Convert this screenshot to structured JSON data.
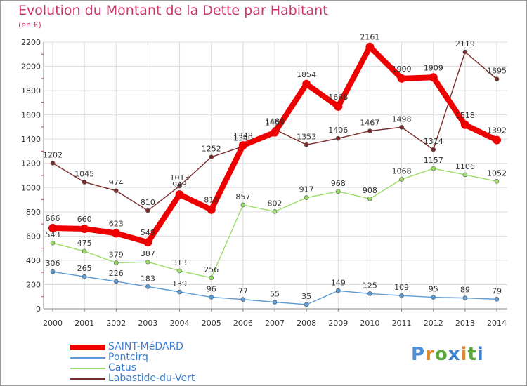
{
  "title": "Evolution du Montant de la Dette par Habitant",
  "subtitle": "(en €)",
  "logo": {
    "text": "Proxiti",
    "letter_colors": [
      "#4a8fd8",
      "#e0872a",
      "#5aa83a",
      "#3d7fd0",
      "#e0872a",
      "#5aa83a",
      "#3d7fd0"
    ]
  },
  "chart_data": {
    "type": "line",
    "title": "Evolution du Montant de la Dette par Habitant",
    "ylabel": "(en €)",
    "xlabel": "",
    "ylim": [
      0,
      2200
    ],
    "yticks": [
      0,
      200,
      400,
      600,
      800,
      1000,
      1200,
      1400,
      1600,
      1800,
      2000,
      2200
    ],
    "grid": true,
    "legend": "bottom-left",
    "x": [
      "2000",
      "2001",
      "2002",
      "2003",
      "2004",
      "2005",
      "2006",
      "2007",
      "2008",
      "2009",
      "2010",
      "2011",
      "2012",
      "2013",
      "2014"
    ],
    "series": [
      {
        "name": "Pontcirq",
        "color": "#5b9bd5",
        "values": [
          306,
          265,
          226,
          183,
          139,
          96,
          77,
          55,
          35,
          149,
          125,
          109,
          95,
          89,
          79
        ]
      },
      {
        "name": "Catus",
        "color": "#99dd66",
        "values": [
          543,
          475,
          379,
          387,
          313,
          256,
          857,
          802,
          917,
          968,
          908,
          1068,
          1157,
          1106,
          1052
        ]
      },
      {
        "name": "Labastide-du-Vert",
        "color": "#7a2a2a",
        "values": [
          1202,
          1045,
          974,
          810,
          1013,
          1252,
          1340,
          1480,
          1353,
          1406,
          1467,
          1498,
          1314,
          2119,
          1895
        ]
      },
      {
        "name": "SAINT-MéDARD",
        "color": "#ee0000",
        "values": [
          666,
          660,
          623,
          549,
          943,
          818,
          1348,
          1455,
          1854,
          1668,
          2161,
          1900,
          1909,
          1518,
          1392
        ]
      }
    ]
  }
}
